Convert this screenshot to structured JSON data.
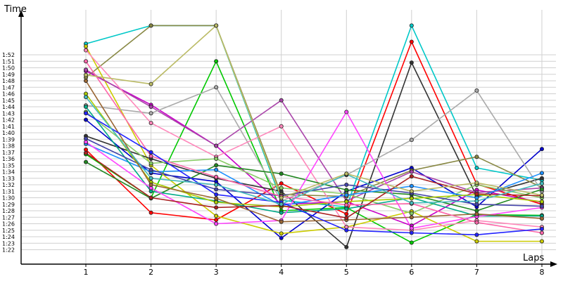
{
  "chart_data": {
    "type": "line",
    "xlabel": "Laps",
    "ylabel": "Time",
    "x": [
      1,
      2,
      3,
      4,
      5,
      6,
      7,
      8
    ],
    "x_ticks": [
      "1",
      "2",
      "3",
      "4",
      "5",
      "6",
      "7",
      "8"
    ],
    "ylim": [
      78,
      116
    ],
    "y_ticks": [
      {
        "v": 82,
        "label": "1:22"
      },
      {
        "v": 83,
        "label": "1:23"
      },
      {
        "v": 84,
        "label": "1:24"
      },
      {
        "v": 85,
        "label": "1:25"
      },
      {
        "v": 86,
        "label": "1:26"
      },
      {
        "v": 87,
        "label": "1:27"
      },
      {
        "v": 88,
        "label": "1:28"
      },
      {
        "v": 89,
        "label": "1:29"
      },
      {
        "v": 90,
        "label": "1:30"
      },
      {
        "v": 91,
        "label": "1:31"
      },
      {
        "v": 92,
        "label": "1:32"
      },
      {
        "v": 93,
        "label": "1:33"
      },
      {
        "v": 94,
        "label": "1:34"
      },
      {
        "v": 95,
        "label": "1:35"
      },
      {
        "v": 96,
        "label": "1:36"
      },
      {
        "v": 97,
        "label": "1:37"
      },
      {
        "v": 98,
        "label": "1:38"
      },
      {
        "v": 99,
        "label": "1:39"
      },
      {
        "v": 100,
        "label": "1:40"
      },
      {
        "v": 101,
        "label": "1:41"
      },
      {
        "v": 102,
        "label": "1:42"
      },
      {
        "v": 103,
        "label": "1:43"
      },
      {
        "v": 104,
        "label": "1:44"
      },
      {
        "v": 105,
        "label": "1:45"
      },
      {
        "v": 106,
        "label": "1:46"
      },
      {
        "v": 107,
        "label": "1:47"
      },
      {
        "v": 108,
        "label": "1:48"
      },
      {
        "v": 109,
        "label": "1:49"
      },
      {
        "v": 110,
        "label": "1:50"
      },
      {
        "v": 111,
        "label": "1:51"
      },
      {
        "v": 112,
        "label": "1:52"
      }
    ],
    "grid": true,
    "series": [
      {
        "color": "#ff0000",
        "values": [
          97.4,
          87.7,
          86.6,
          92.2,
          87.5,
          114.0,
          92.1,
          89.0
        ]
      },
      {
        "color": "#00c800",
        "values": [
          96.7,
          90.0,
          111.0,
          88.0,
          88.5,
          83.1,
          87.4,
          87.3
        ]
      },
      {
        "color": "#0000cc",
        "values": [
          102.0,
          93.8,
          92.5,
          83.8,
          91.0,
          94.6,
          88.6,
          97.5
        ]
      },
      {
        "color": "#00c8c8",
        "values": [
          113.7,
          116.5,
          116.5,
          89.6,
          88.6,
          116.5,
          94.6,
          92.7
        ]
      },
      {
        "color": "#c800c8",
        "values": [
          109.5,
          104.3,
          98.0,
          89.0,
          89.4,
          85.7,
          91.2,
          89.3
        ]
      },
      {
        "color": "#cccc00",
        "values": [
          113.3,
          95.0,
          87.2,
          84.5,
          85.5,
          87.9,
          83.3,
          83.3
        ]
      },
      {
        "color": "#333333",
        "values": [
          99.5,
          96.0,
          93.0,
          91.0,
          82.4,
          110.8,
          90.2,
          93.0
        ]
      },
      {
        "color": "#888844",
        "values": [
          108.5,
          116.5,
          116.5,
          90.5,
          90.2,
          94.2,
          96.3,
          91.6
        ]
      },
      {
        "color": "#aa44aa",
        "values": [
          109.7,
          104.0,
          98.0,
          105.0,
          89.5,
          94.0,
          90.8,
          91.5
        ]
      },
      {
        "color": "#aaaaaa",
        "values": [
          104.2,
          103.0,
          107.0,
          89.5,
          93.5,
          98.9,
          106.5,
          91.0
        ]
      },
      {
        "color": "#ff88bb",
        "values": [
          112.7,
          101.5,
          96.3,
          101.0,
          85.5,
          85.0,
          86.5,
          85.5
        ]
      },
      {
        "color": "#88cc66",
        "values": [
          103.2,
          95.3,
          96.0,
          91.5,
          90.6,
          87.6,
          92.0,
          90.0
        ]
      },
      {
        "color": "#228822",
        "values": [
          95.5,
          89.9,
          95.0,
          93.7,
          91.2,
          90.5,
          88.0,
          91.3
        ]
      },
      {
        "color": "#1e90ff",
        "values": [
          98.3,
          94.0,
          94.3,
          88.8,
          90.4,
          91.8,
          90.0,
          93.8
        ]
      },
      {
        "color": "#00aa88",
        "values": [
          104.0,
          91.0,
          89.5,
          87.7,
          88.3,
          90.0,
          87.2,
          87.2
        ]
      },
      {
        "color": "#ff44ff",
        "values": [
          98.6,
          91.5,
          86.0,
          86.5,
          103.2,
          85.3,
          87.1,
          88.5
        ]
      },
      {
        "color": "#4444aa",
        "values": [
          99.1,
          94.3,
          91.3,
          90.3,
          92.0,
          90.7,
          89.0,
          88.7
        ]
      },
      {
        "color": "#aacc00",
        "values": [
          106.0,
          92.4,
          89.3,
          88.6,
          89.4,
          89.9,
          90.5,
          89.4
        ]
      },
      {
        "color": "#996633",
        "values": [
          108.0,
          92.0,
          89.9,
          86.3,
          86.6,
          87.0,
          87.5,
          86.8
        ]
      },
      {
        "color": "#ff66aa",
        "values": [
          111.0,
          96.4,
          93.2,
          90.2,
          88.9,
          89.1,
          86.2,
          84.6
        ]
      },
      {
        "color": "#2222ff",
        "values": [
          103.0,
          97.0,
          90.5,
          89.3,
          85.0,
          84.6,
          84.3,
          85.2
        ]
      },
      {
        "color": "#aa2222",
        "values": [
          96.9,
          90.0,
          88.5,
          88.8,
          86.9,
          93.3,
          90.6,
          90.3
        ]
      },
      {
        "color": "#44bbbb",
        "values": [
          105.5,
          93.0,
          92.0,
          89.0,
          93.6,
          89.2,
          89.5,
          92.2
        ]
      },
      {
        "color": "#bbbb66",
        "values": [
          108.9,
          107.5,
          116.5,
          90.0,
          93.7,
          91.0,
          92.3,
          90.4
        ]
      }
    ]
  }
}
